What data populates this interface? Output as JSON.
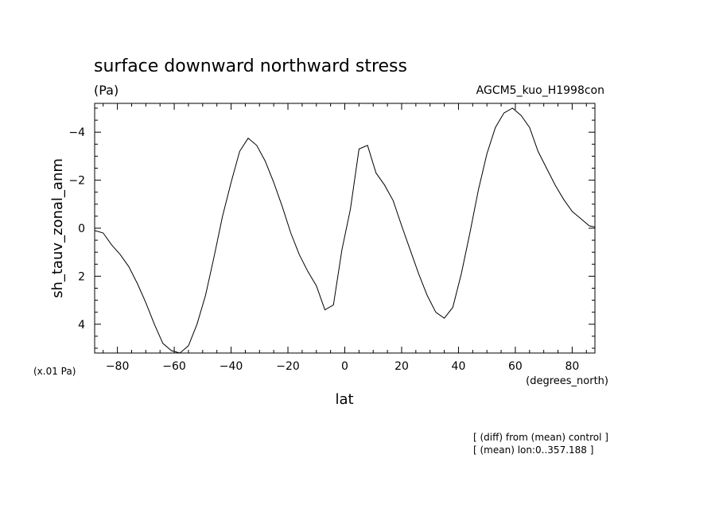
{
  "chart_data": {
    "type": "line",
    "title": "surface downward northward stress",
    "units": "(Pa)",
    "run_label": "AGCM5_kuo_H1998con",
    "ylabel": "sh_tauv_zonal_anm",
    "xlabel": "lat",
    "x_units": "(degrees_north)",
    "y_scale_note": "(x.01 Pa)",
    "notes": [
      "[ (diff) from (mean) control ]",
      "[ (mean) lon:0..357.188 ]"
    ],
    "xlim": [
      -88,
      88
    ],
    "ylim": [
      5.2,
      -5.2
    ],
    "y_inverted": true,
    "grid": false,
    "x_ticks": [
      -80,
      -60,
      -40,
      -20,
      0,
      20,
      40,
      60,
      80
    ],
    "x_tick_labels": [
      "−80",
      "−60",
      "−40",
      "−20",
      "0",
      "20",
      "40",
      "60",
      "80"
    ],
    "y_ticks": [
      -4,
      -2,
      0,
      2,
      4
    ],
    "y_tick_labels": [
      "−4",
      "−2",
      "0",
      "2",
      "4"
    ],
    "series": [
      {
        "x": [
          -88,
          -85,
          -82,
          -79,
          -76,
          -73,
          -70,
          -67,
          -64,
          -61,
          -58,
          -55,
          -52,
          -49,
          -46,
          -43,
          -40,
          -37,
          -34,
          -31,
          -28,
          -25,
          -22,
          -19,
          -16,
          -13,
          -10,
          -7,
          -4,
          -1,
          2,
          5,
          8,
          11,
          14,
          17,
          20,
          23,
          26,
          29,
          32,
          35,
          38,
          41,
          44,
          47,
          50,
          53,
          56,
          59,
          62,
          65,
          68,
          71,
          74,
          77,
          80,
          83,
          86,
          88
        ],
        "y": [
          0.1,
          0.2,
          0.7,
          1.1,
          1.6,
          2.3,
          3.1,
          4.0,
          4.8,
          5.1,
          5.25,
          4.9,
          4.0,
          2.8,
          1.2,
          -0.5,
          -1.9,
          -3.2,
          -3.75,
          -3.45,
          -2.8,
          -1.9,
          -0.9,
          0.2,
          1.1,
          1.8,
          2.4,
          3.4,
          3.2,
          0.9,
          -0.8,
          -3.3,
          -3.45,
          -2.3,
          -1.8,
          -1.15,
          -0.1,
          0.9,
          1.9,
          2.8,
          3.5,
          3.75,
          3.3,
          1.9,
          0.2,
          -1.6,
          -3.1,
          -4.2,
          -4.8,
          -5.0,
          -4.7,
          -4.2,
          -3.2,
          -2.5,
          -1.8,
          -1.2,
          -0.7,
          -0.4,
          -0.1,
          -0.05
        ]
      }
    ]
  }
}
